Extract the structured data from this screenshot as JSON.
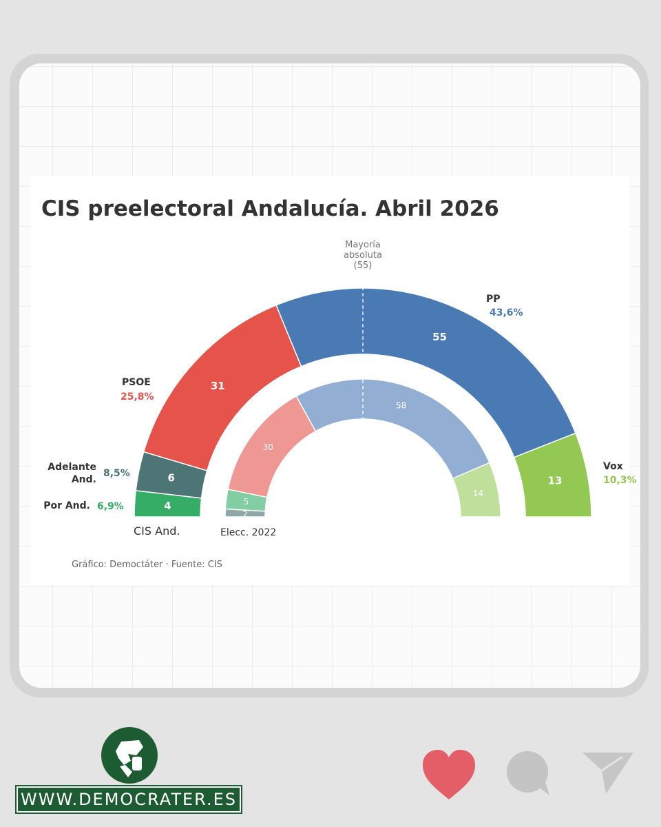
{
  "chart_data": {
    "type": "parliament-donut",
    "title": "CIS preelectoral Andalucía. Abril 2026",
    "majority_label": [
      "Mayoría",
      "absoluta",
      "(55)"
    ],
    "rings": [
      {
        "name": "CIS And.",
        "segments": [
          {
            "party": "Por And.",
            "seats": 4,
            "vote": "6,9%",
            "color": "#35ad66"
          },
          {
            "party": "Adelante And.",
            "seats": 6,
            "vote": "8,5%",
            "color": "#4d7575"
          },
          {
            "party": "PSOE",
            "seats": 31,
            "vote": "25,8%",
            "color": "#e5534b"
          },
          {
            "party": "PP",
            "seats": 55,
            "vote": "43,6%",
            "color": "#4a7ab3"
          },
          {
            "party": "Vox",
            "seats": 13,
            "vote": "10,3%",
            "color": "#93c953"
          }
        ]
      },
      {
        "name": "Elecc. 2022",
        "segments": [
          {
            "party": "Adelante And.",
            "seats": 2,
            "color": "#8fa7a7"
          },
          {
            "party": "Por And.",
            "seats": 5,
            "color": "#82cda2"
          },
          {
            "party": "PSOE",
            "seats": 30,
            "color": "#ef9893"
          },
          {
            "party": "PP",
            "seats": 58,
            "color": "#92aed3"
          },
          {
            "party": "Vox",
            "seats": 14,
            "color": "#bfe09b"
          }
        ]
      }
    ],
    "party_labels": [
      {
        "party": "PP",
        "name": [
          "PP"
        ],
        "vote": "43,6%",
        "color": "#4a7ab3"
      },
      {
        "party": "PSOE",
        "name": [
          "PSOE"
        ],
        "vote": "25,8%",
        "color": "#e5534b"
      },
      {
        "party": "Adelante And.",
        "name": [
          "Adelante",
          "And."
        ],
        "vote": "8,5%",
        "color": "#4d7575"
      },
      {
        "party": "Por And.",
        "name": [
          "Por And."
        ],
        "vote": "6,9%",
        "color": "#35ad66"
      },
      {
        "party": "Vox",
        "name": [
          "Vox"
        ],
        "vote": "10,3%",
        "color": "#93c953"
      }
    ],
    "legend_placement": "around-arc"
  },
  "credit": "Gráfico: Democtáter · Fuente: CIS",
  "footer": {
    "url": "WWW.DEMOCRATER.ES"
  },
  "icons": [
    "logo-icon",
    "heart-icon",
    "comment-icon",
    "send-icon"
  ],
  "colors": {
    "brand_green": "#1d5b32",
    "heart": "#e35e67",
    "icon_gray": "#bdbdbd"
  }
}
